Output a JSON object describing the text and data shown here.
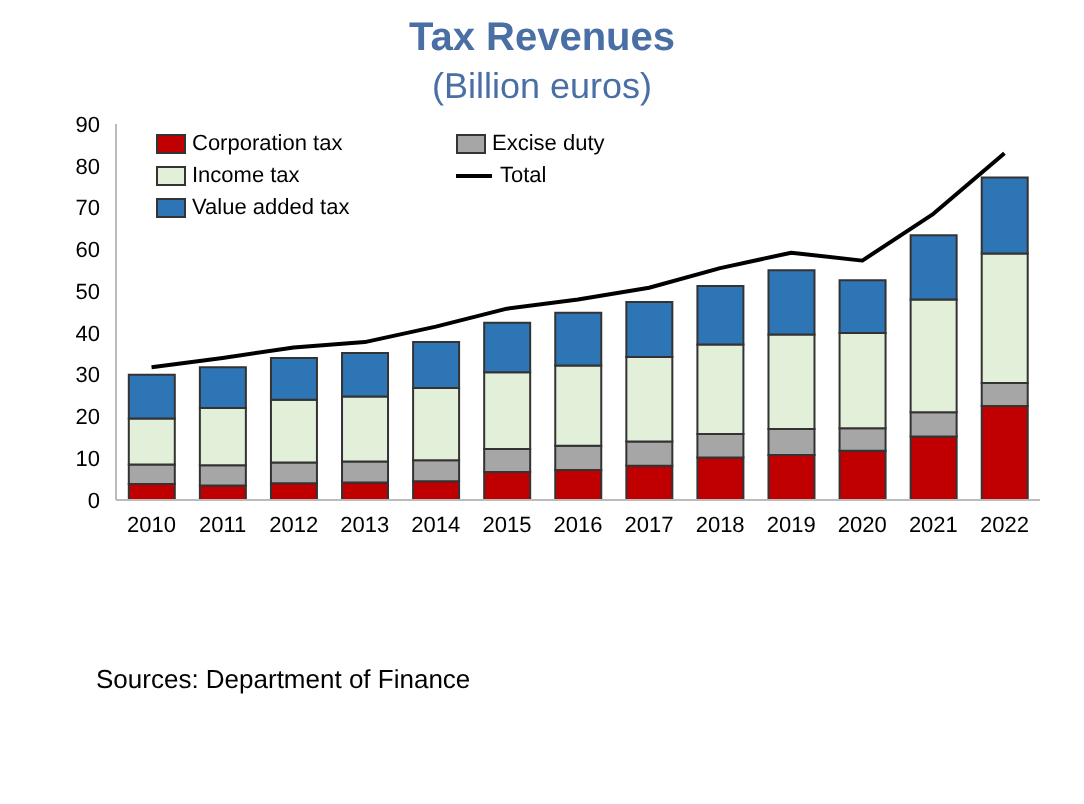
{
  "chart_data": {
    "type": "bar",
    "title": "Tax Revenues",
    "subtitle": "(Billion euros)",
    "stacked": true,
    "categories": [
      "2010",
      "2011",
      "2012",
      "2013",
      "2014",
      "2015",
      "2016",
      "2017",
      "2018",
      "2019",
      "2020",
      "2021",
      "2022"
    ],
    "series": [
      {
        "name": "Corporation tax",
        "color": "#c00000",
        "values": [
          3.8,
          3.5,
          4,
          4.2,
          4.5,
          6.7,
          7.2,
          8.2,
          10.2,
          10.8,
          11.8,
          15.2,
          22.5
        ]
      },
      {
        "name": "Excise duty",
        "color": "#a6a6a6",
        "values": [
          4.7,
          4.8,
          5,
          5,
          5,
          5.5,
          5.8,
          5.8,
          5.6,
          6.2,
          5.4,
          5.8,
          5.5
        ]
      },
      {
        "name": "Income tax",
        "color": "#e2efd9",
        "values": [
          11,
          13.7,
          15,
          15.6,
          17.3,
          18.4,
          19.2,
          20.2,
          21.4,
          22.6,
          22.8,
          27,
          31
        ]
      },
      {
        "name": "Value added tax",
        "color": "#2e75b6",
        "values": [
          10.5,
          9.8,
          10,
          10.4,
          11,
          11.8,
          12.6,
          13.2,
          14,
          15.4,
          12.6,
          15.4,
          18.2
        ]
      },
      {
        "name": "Total",
        "type": "line",
        "color": "#000000",
        "values": [
          31.8,
          34,
          36.5,
          37.8,
          41.5,
          45.8,
          48,
          50.8,
          55.5,
          59.2,
          57.3,
          68.5,
          83
        ]
      }
    ],
    "ylim": [
      0,
      90
    ],
    "yticks": [
      0,
      10,
      20,
      30,
      40,
      50,
      60,
      70,
      80,
      90
    ],
    "grid": false,
    "legend": "top left",
    "marker": "none",
    "annotations": [
      "Sources: Department of Finance"
    ]
  }
}
